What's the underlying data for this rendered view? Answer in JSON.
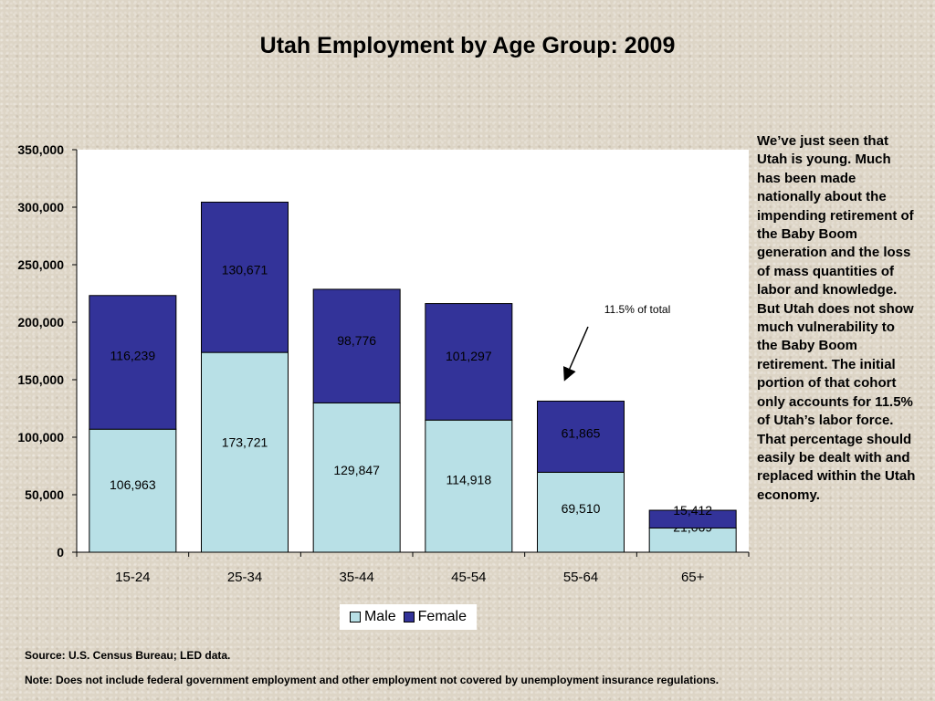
{
  "title": "Utah Employment by Age Group: 2009",
  "chart_data": {
    "type": "bar",
    "stacked": true,
    "title": "Utah Employment by Age Group: 2009",
    "categories": [
      "15-24",
      "25-34",
      "35-44",
      "45-54",
      "55-64",
      "65+"
    ],
    "series": [
      {
        "name": "Male",
        "color": "#b8e0e6",
        "values": [
          106963,
          173721,
          129847,
          114918,
          69510,
          21069
        ],
        "labels": [
          "106,963",
          "173,721",
          "129,847",
          "114,918",
          "69,510",
          "21,069"
        ]
      },
      {
        "name": "Female",
        "color": "#333399",
        "values": [
          116239,
          130671,
          98776,
          101297,
          61865,
          15412
        ],
        "labels": [
          "116,239",
          "130,671",
          "98,776",
          "101,297",
          "61,865",
          "15,412"
        ]
      }
    ],
    "ylim": [
      0,
      350000
    ],
    "yticks": [
      0,
      50000,
      100000,
      150000,
      200000,
      250000,
      300000,
      350000
    ],
    "ytick_labels": [
      "0",
      "50,000",
      "100,000",
      "150,000",
      "200,000",
      "250,000",
      "300,000",
      "350,000"
    ],
    "grid": false,
    "legend": "bottom",
    "annotation": {
      "text": "11.5% of total",
      "category": "55-64"
    }
  },
  "sidebar_text": "We’ve just seen that Utah is young. Much has been made nationally about the impending retirement of the Baby Boom generation and the loss of mass quantities of labor and knowledge. But Utah does not show much vulnerability to the Baby Boom retirement. The initial portion of that cohort only accounts for 11.5% of Utah’s labor force. That percentage should easily be dealt with and replaced within the Utah economy.",
  "source": "Source: U.S. Census Bureau; LED data.",
  "note": "Note: Does not include federal government employment and other employment not covered by unemployment insurance regulations."
}
